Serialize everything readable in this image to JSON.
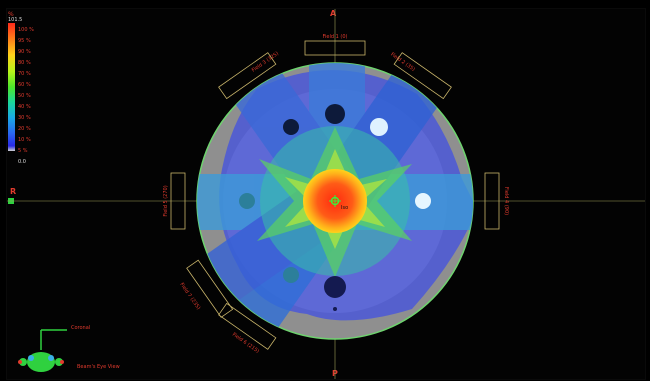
{
  "legend": {
    "unit": "%",
    "max_value": "101.5",
    "levels": [
      "100 %",
      "95 %",
      "90 %",
      "80 %",
      "70 %",
      "60 %",
      "50 %",
      "40 %",
      "30 %",
      "20 %",
      "10 %",
      "5 %"
    ],
    "bottom_value": "0.0"
  },
  "orientation": {
    "anterior": "A",
    "posterior": "P",
    "right": "R"
  },
  "beams": [
    {
      "label": "Field 1 (0)"
    },
    {
      "label": "Field 2 (35)"
    },
    {
      "label": "Field 3 (325)"
    },
    {
      "label": "Field 4 (90)"
    },
    {
      "label": "Field 5 (270)"
    },
    {
      "label": "Field 6 (215)"
    },
    {
      "label": "Field 7 (235)"
    }
  ],
  "iso_label": "Iso",
  "mini_view": {
    "axis_label": "Coronal",
    "caption": "Beam's Eye View"
  },
  "colors": {
    "accent": "#e23b2e",
    "frame": "#c8b46a",
    "outline": "#6ed36e"
  }
}
